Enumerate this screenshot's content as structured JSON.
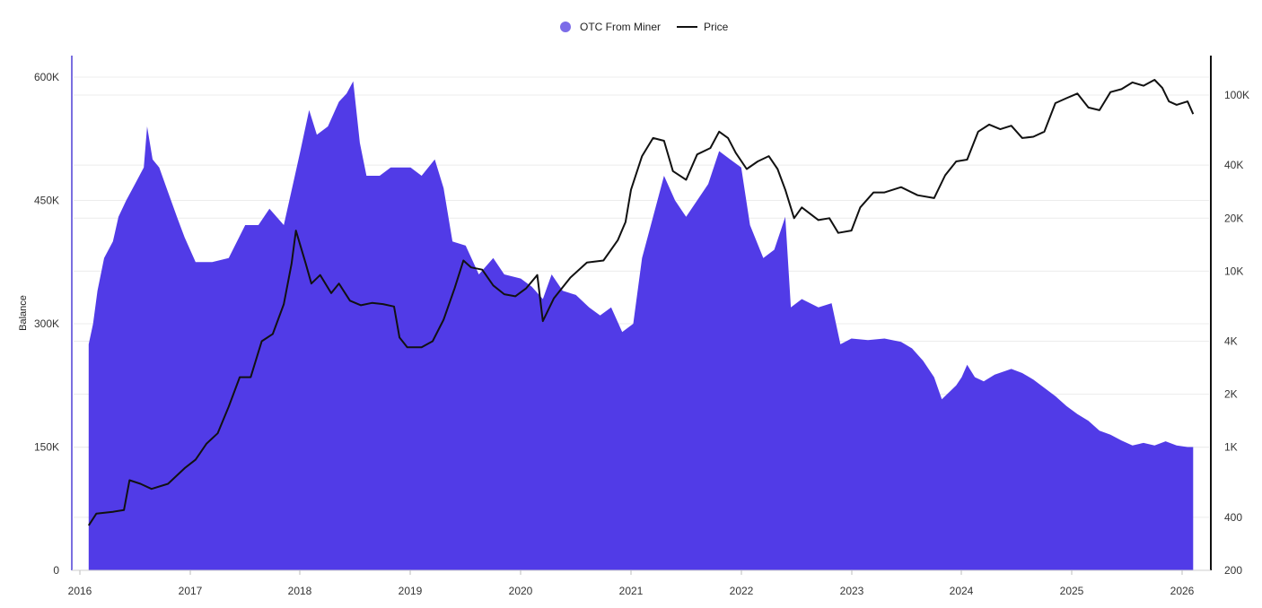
{
  "chart_data": {
    "type": "area",
    "title": "",
    "xlabel": "",
    "ylabel": "Balance",
    "y2label": "",
    "legend_position": "top-center",
    "grid": true,
    "x_ticks": [
      "2016",
      "2017",
      "2018",
      "2019",
      "2020",
      "2021",
      "2022",
      "2023",
      "2024",
      "2025",
      "2026"
    ],
    "y_ticks_left": [
      {
        "value": 0,
        "label": "0"
      },
      {
        "value": 150000,
        "label": "150K"
      },
      {
        "value": 300000,
        "label": "300K"
      },
      {
        "value": 450000,
        "label": "450K"
      },
      {
        "value": 600000,
        "label": "600K"
      }
    ],
    "y_ticks_right": [
      {
        "value": 200,
        "label": "200"
      },
      {
        "value": 400,
        "label": "400"
      },
      {
        "value": 1000,
        "label": "1K"
      },
      {
        "value": 2000,
        "label": "2K"
      },
      {
        "value": 4000,
        "label": "4K"
      },
      {
        "value": 10000,
        "label": "10K"
      },
      {
        "value": 20000,
        "label": "20K"
      },
      {
        "value": 40000,
        "label": "40K"
      },
      {
        "value": 100000,
        "label": "100K"
      }
    ],
    "ylim_left": [
      0,
      630000
    ],
    "ylim_right": [
      200,
      180000
    ],
    "y_right_scale": "log",
    "xlim": [
      2016.0,
      2026.2
    ],
    "series": [
      {
        "name": "OTC From Miner",
        "kind": "area",
        "axis": "left",
        "color": "#4b35e6",
        "points": [
          [
            2016.08,
            275000
          ],
          [
            2016.12,
            300000
          ],
          [
            2016.16,
            340000
          ],
          [
            2016.22,
            380000
          ],
          [
            2016.3,
            400000
          ],
          [
            2016.35,
            430000
          ],
          [
            2016.42,
            450000
          ],
          [
            2016.5,
            470000
          ],
          [
            2016.58,
            490000
          ],
          [
            2016.61,
            540000
          ],
          [
            2016.66,
            500000
          ],
          [
            2016.72,
            490000
          ],
          [
            2016.8,
            460000
          ],
          [
            2016.88,
            430000
          ],
          [
            2016.95,
            405000
          ],
          [
            2017.05,
            375000
          ],
          [
            2017.2,
            375000
          ],
          [
            2017.35,
            380000
          ],
          [
            2017.5,
            420000
          ],
          [
            2017.62,
            420000
          ],
          [
            2017.72,
            440000
          ],
          [
            2017.85,
            420000
          ],
          [
            2017.95,
            480000
          ],
          [
            2018.0,
            510000
          ],
          [
            2018.08,
            560000
          ],
          [
            2018.15,
            530000
          ],
          [
            2018.25,
            540000
          ],
          [
            2018.35,
            570000
          ],
          [
            2018.42,
            580000
          ],
          [
            2018.48,
            595000
          ],
          [
            2018.54,
            520000
          ],
          [
            2018.6,
            480000
          ],
          [
            2018.72,
            480000
          ],
          [
            2018.82,
            490000
          ],
          [
            2018.92,
            490000
          ],
          [
            2019.0,
            490000
          ],
          [
            2019.1,
            480000
          ],
          [
            2019.22,
            500000
          ],
          [
            2019.3,
            465000
          ],
          [
            2019.38,
            400000
          ],
          [
            2019.5,
            395000
          ],
          [
            2019.62,
            360000
          ],
          [
            2019.75,
            380000
          ],
          [
            2019.85,
            360000
          ],
          [
            2020.0,
            355000
          ],
          [
            2020.1,
            345000
          ],
          [
            2020.2,
            330000
          ],
          [
            2020.28,
            360000
          ],
          [
            2020.38,
            340000
          ],
          [
            2020.5,
            335000
          ],
          [
            2020.62,
            320000
          ],
          [
            2020.72,
            310000
          ],
          [
            2020.82,
            320000
          ],
          [
            2020.92,
            290000
          ],
          [
            2021.02,
            300000
          ],
          [
            2021.1,
            380000
          ],
          [
            2021.2,
            430000
          ],
          [
            2021.3,
            480000
          ],
          [
            2021.4,
            450000
          ],
          [
            2021.5,
            430000
          ],
          [
            2021.6,
            450000
          ],
          [
            2021.7,
            470000
          ],
          [
            2021.8,
            510000
          ],
          [
            2021.9,
            500000
          ],
          [
            2022.0,
            490000
          ],
          [
            2022.08,
            420000
          ],
          [
            2022.2,
            380000
          ],
          [
            2022.3,
            390000
          ],
          [
            2022.4,
            430000
          ],
          [
            2022.45,
            320000
          ],
          [
            2022.55,
            330000
          ],
          [
            2022.7,
            320000
          ],
          [
            2022.82,
            325000
          ],
          [
            2022.9,
            275000
          ],
          [
            2023.0,
            282000
          ],
          [
            2023.15,
            280000
          ],
          [
            2023.3,
            282000
          ],
          [
            2023.45,
            278000
          ],
          [
            2023.55,
            270000
          ],
          [
            2023.65,
            255000
          ],
          [
            2023.75,
            235000
          ],
          [
            2023.82,
            208000
          ],
          [
            2023.95,
            225000
          ],
          [
            2024.0,
            235000
          ],
          [
            2024.05,
            250000
          ],
          [
            2024.12,
            235000
          ],
          [
            2024.2,
            230000
          ],
          [
            2024.3,
            238000
          ],
          [
            2024.45,
            245000
          ],
          [
            2024.55,
            240000
          ],
          [
            2024.65,
            232000
          ],
          [
            2024.75,
            222000
          ],
          [
            2024.85,
            212000
          ],
          [
            2024.95,
            200000
          ],
          [
            2025.05,
            190000
          ],
          [
            2025.15,
            182000
          ],
          [
            2025.25,
            170000
          ],
          [
            2025.35,
            165000
          ],
          [
            2025.45,
            158000
          ],
          [
            2025.55,
            152000
          ],
          [
            2025.65,
            155000
          ],
          [
            2025.75,
            152000
          ],
          [
            2025.85,
            157000
          ],
          [
            2025.95,
            152000
          ],
          [
            2026.05,
            150000
          ],
          [
            2026.1,
            150000
          ]
        ]
      },
      {
        "name": "Price",
        "kind": "line",
        "axis": "right",
        "color": "#111111",
        "points": [
          [
            2016.08,
            360
          ],
          [
            2016.15,
            420
          ],
          [
            2016.3,
            430
          ],
          [
            2016.4,
            440
          ],
          [
            2016.45,
            650
          ],
          [
            2016.55,
            620
          ],
          [
            2016.65,
            580
          ],
          [
            2016.8,
            620
          ],
          [
            2016.95,
            760
          ],
          [
            2017.05,
            850
          ],
          [
            2017.15,
            1050
          ],
          [
            2017.25,
            1200
          ],
          [
            2017.35,
            1700
          ],
          [
            2017.45,
            2500
          ],
          [
            2017.55,
            2500
          ],
          [
            2017.65,
            4000
          ],
          [
            2017.75,
            4400
          ],
          [
            2017.85,
            6500
          ],
          [
            2017.92,
            11000
          ],
          [
            2017.96,
            17000
          ],
          [
            2018.0,
            14000
          ],
          [
            2018.05,
            11000
          ],
          [
            2018.1,
            8500
          ],
          [
            2018.18,
            9500
          ],
          [
            2018.28,
            7500
          ],
          [
            2018.35,
            8500
          ],
          [
            2018.45,
            6800
          ],
          [
            2018.55,
            6400
          ],
          [
            2018.65,
            6600
          ],
          [
            2018.75,
            6500
          ],
          [
            2018.85,
            6300
          ],
          [
            2018.9,
            4200
          ],
          [
            2018.97,
            3700
          ],
          [
            2019.1,
            3700
          ],
          [
            2019.2,
            4000
          ],
          [
            2019.3,
            5300
          ],
          [
            2019.4,
            8000
          ],
          [
            2019.48,
            11500
          ],
          [
            2019.55,
            10500
          ],
          [
            2019.65,
            10200
          ],
          [
            2019.75,
            8300
          ],
          [
            2019.85,
            7400
          ],
          [
            2019.95,
            7200
          ],
          [
            2020.05,
            8000
          ],
          [
            2020.15,
            9500
          ],
          [
            2020.2,
            5200
          ],
          [
            2020.3,
            7000
          ],
          [
            2020.45,
            9200
          ],
          [
            2020.6,
            11200
          ],
          [
            2020.75,
            11500
          ],
          [
            2020.88,
            15000
          ],
          [
            2020.95,
            19000
          ],
          [
            2021.0,
            29000
          ],
          [
            2021.1,
            45000
          ],
          [
            2021.2,
            57000
          ],
          [
            2021.3,
            55000
          ],
          [
            2021.38,
            37000
          ],
          [
            2021.5,
            33000
          ],
          [
            2021.6,
            46000
          ],
          [
            2021.72,
            50000
          ],
          [
            2021.8,
            62000
          ],
          [
            2021.88,
            57000
          ],
          [
            2021.95,
            47000
          ],
          [
            2022.05,
            38000
          ],
          [
            2022.15,
            42000
          ],
          [
            2022.25,
            45000
          ],
          [
            2022.33,
            38000
          ],
          [
            2022.4,
            29000
          ],
          [
            2022.48,
            20000
          ],
          [
            2022.55,
            23000
          ],
          [
            2022.7,
            19500
          ],
          [
            2022.8,
            20000
          ],
          [
            2022.88,
            16500
          ],
          [
            2023.0,
            17000
          ],
          [
            2023.08,
            23000
          ],
          [
            2023.2,
            28000
          ],
          [
            2023.3,
            28000
          ],
          [
            2023.45,
            30000
          ],
          [
            2023.6,
            27000
          ],
          [
            2023.75,
            26000
          ],
          [
            2023.85,
            35000
          ],
          [
            2023.95,
            42000
          ],
          [
            2024.05,
            43000
          ],
          [
            2024.15,
            62000
          ],
          [
            2024.25,
            68000
          ],
          [
            2024.35,
            64000
          ],
          [
            2024.45,
            67000
          ],
          [
            2024.55,
            57000
          ],
          [
            2024.65,
            58000
          ],
          [
            2024.75,
            62000
          ],
          [
            2024.85,
            90000
          ],
          [
            2024.95,
            96000
          ],
          [
            2025.05,
            102000
          ],
          [
            2025.15,
            85000
          ],
          [
            2025.25,
            82000
          ],
          [
            2025.35,
            104000
          ],
          [
            2025.45,
            108000
          ],
          [
            2025.55,
            118000
          ],
          [
            2025.65,
            113000
          ],
          [
            2025.75,
            122000
          ],
          [
            2025.82,
            110000
          ],
          [
            2025.88,
            92000
          ],
          [
            2025.95,
            88000
          ],
          [
            2026.05,
            92000
          ],
          [
            2026.1,
            78000
          ]
        ]
      }
    ]
  }
}
